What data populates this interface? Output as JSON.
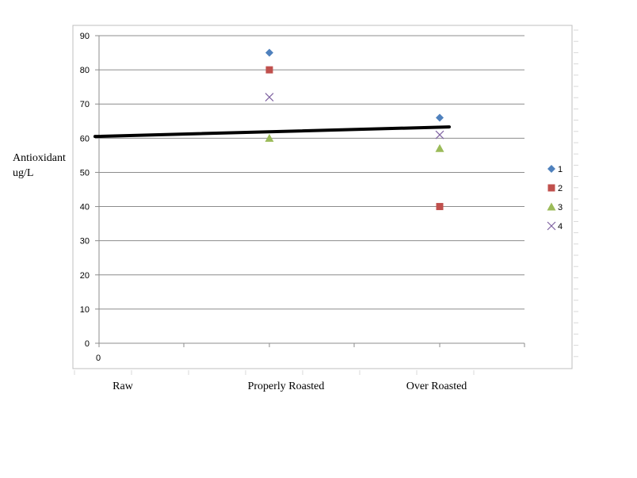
{
  "chart_data": {
    "type": "scatter",
    "ylabel_lines": [
      "Antioxidant",
      "ug/L"
    ],
    "x_origin_label": "0",
    "ylim": [
      0,
      90
    ],
    "y_ticks": [
      0,
      10,
      20,
      30,
      40,
      50,
      60,
      70,
      80,
      90
    ],
    "grid": true,
    "legend_position": "right",
    "categories": [
      "Raw",
      "Properly Roasted",
      "Over Roasted"
    ],
    "series": [
      {
        "name": "1",
        "marker": "diamond",
        "color": "#4F81BD",
        "values": [
          null,
          85,
          66
        ]
      },
      {
        "name": "2",
        "marker": "square",
        "color": "#C0504D",
        "values": [
          null,
          80,
          40
        ]
      },
      {
        "name": "3",
        "marker": "triangle",
        "color": "#9BBB59",
        "values": [
          null,
          60,
          57
        ]
      },
      {
        "name": "4",
        "marker": "x",
        "color": "#8064A2",
        "values": [
          null,
          72,
          61
        ]
      }
    ],
    "trendline": {
      "color": "#000000",
      "start_value": 60.5,
      "end_value": 63.3
    }
  }
}
